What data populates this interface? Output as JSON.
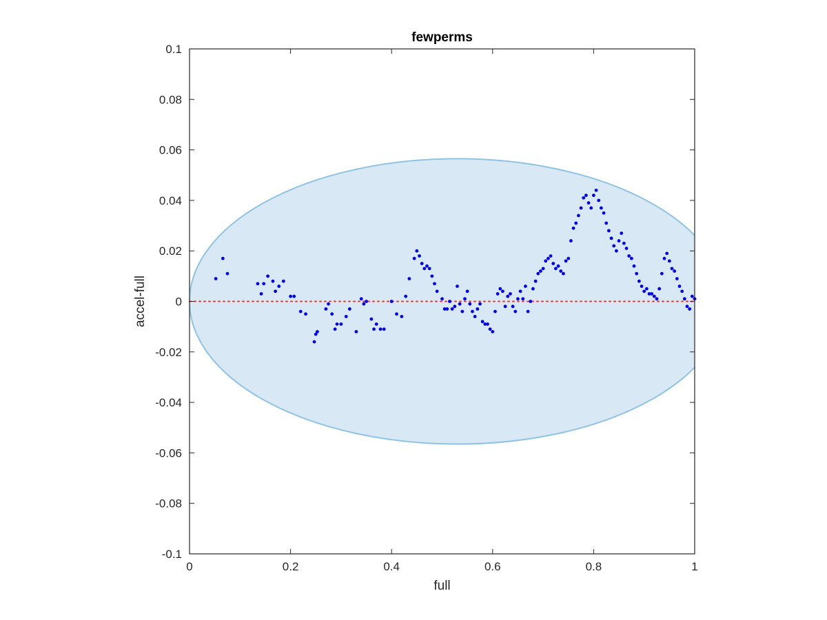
{
  "colors": {
    "ellipse_fill": "#d8e8f4",
    "ellipse_edge": "#8fc3e3",
    "points": "#0000ee",
    "zero_line": "#ff2a2a",
    "axes": "#262626"
  },
  "chart_data": {
    "type": "scatter",
    "title": "fewperms",
    "xlabel": "full",
    "ylabel": "accel-full",
    "xlim": [
      0,
      1
    ],
    "ylim": [
      -0.1,
      0.1
    ],
    "xticks": [
      0,
      0.2,
      0.4,
      0.6,
      0.8,
      1
    ],
    "xtick_labels": [
      "0",
      "0.2",
      "0.4",
      "0.6",
      "0.8",
      "1"
    ],
    "yticks": [
      -0.1,
      -0.08,
      -0.06,
      -0.04,
      -0.02,
      0,
      0.02,
      0.04,
      0.06,
      0.08,
      0.1
    ],
    "ytick_labels": [
      "-0.1",
      "-0.08",
      "-0.06",
      "-0.04",
      "-0.02",
      "0",
      "0.02",
      "0.04",
      "0.06",
      "0.08",
      "0.1"
    ],
    "grid": false,
    "reference_line": {
      "y": 0,
      "style": "dotted"
    },
    "region": {
      "shape": "ellipse",
      "center": [
        0.53,
        0.0
      ],
      "rx": 0.53,
      "ry": 0.0565
    },
    "series": [
      {
        "marker": "dot",
        "x": [
          0.052,
          0.066,
          0.075,
          0.135,
          0.142,
          0.147,
          0.155,
          0.165,
          0.17,
          0.177,
          0.186,
          0.2,
          0.207,
          0.22,
          0.23,
          0.247,
          0.25,
          0.253,
          0.27,
          0.275,
          0.282,
          0.288,
          0.292,
          0.3,
          0.31,
          0.317,
          0.33,
          0.34,
          0.345,
          0.35,
          0.36,
          0.365,
          0.37,
          0.378,
          0.385,
          0.4,
          0.41,
          0.42,
          0.428,
          0.435,
          0.445,
          0.45,
          0.455,
          0.46,
          0.465,
          0.47,
          0.475,
          0.48,
          0.485,
          0.49,
          0.5,
          0.505,
          0.51,
          0.515,
          0.52,
          0.525,
          0.53,
          0.535,
          0.54,
          0.545,
          0.55,
          0.555,
          0.56,
          0.565,
          0.57,
          0.575,
          0.58,
          0.585,
          0.59,
          0.595,
          0.6,
          0.605,
          0.61,
          0.615,
          0.62,
          0.625,
          0.63,
          0.635,
          0.64,
          0.645,
          0.65,
          0.655,
          0.66,
          0.665,
          0.67,
          0.675,
          0.68,
          0.685,
          0.69,
          0.695,
          0.7,
          0.705,
          0.71,
          0.715,
          0.72,
          0.725,
          0.73,
          0.735,
          0.74,
          0.745,
          0.75,
          0.755,
          0.76,
          0.765,
          0.77,
          0.775,
          0.78,
          0.785,
          0.79,
          0.795,
          0.8,
          0.805,
          0.81,
          0.815,
          0.82,
          0.825,
          0.83,
          0.835,
          0.84,
          0.845,
          0.85,
          0.855,
          0.86,
          0.865,
          0.87,
          0.875,
          0.88,
          0.885,
          0.89,
          0.895,
          0.9,
          0.905,
          0.91,
          0.915,
          0.92,
          0.925,
          0.93,
          0.935,
          0.94,
          0.945,
          0.95,
          0.955,
          0.96,
          0.965,
          0.97,
          0.975,
          0.98,
          0.985,
          0.99,
          0.995,
          1.0
        ],
        "y": [
          0.009,
          0.017,
          0.011,
          0.007,
          0.003,
          0.007,
          0.01,
          0.008,
          0.004,
          0.006,
          0.008,
          0.002,
          0.002,
          -0.004,
          -0.005,
          -0.016,
          -0.013,
          -0.012,
          -0.003,
          -0.001,
          -0.005,
          -0.011,
          -0.009,
          -0.009,
          -0.006,
          -0.003,
          -0.012,
          0.001,
          -0.001,
          0.0,
          -0.007,
          -0.011,
          -0.009,
          -0.011,
          -0.011,
          0.0,
          -0.005,
          -0.006,
          0.002,
          0.009,
          0.017,
          0.02,
          0.018,
          0.015,
          0.013,
          0.014,
          0.013,
          0.01,
          0.007,
          0.004,
          0.001,
          -0.003,
          -0.003,
          0.0,
          -0.003,
          -0.002,
          0.006,
          -0.001,
          -0.004,
          0.001,
          0.004,
          -0.001,
          -0.004,
          -0.006,
          -0.003,
          -0.001,
          -0.008,
          -0.009,
          -0.009,
          -0.011,
          -0.012,
          -0.004,
          0.003,
          0.005,
          0.004,
          -0.002,
          0.002,
          0.003,
          -0.002,
          -0.004,
          0.001,
          0.004,
          0.001,
          0.006,
          -0.004,
          0.0,
          0.005,
          0.008,
          0.011,
          0.012,
          0.013,
          0.016,
          0.017,
          0.018,
          0.015,
          0.013,
          0.014,
          0.012,
          0.011,
          0.016,
          0.017,
          0.024,
          0.029,
          0.031,
          0.034,
          0.037,
          0.041,
          0.042,
          0.039,
          0.037,
          0.042,
          0.044,
          0.04,
          0.037,
          0.035,
          0.031,
          0.028,
          0.025,
          0.022,
          0.02,
          0.024,
          0.027,
          0.023,
          0.021,
          0.018,
          0.017,
          0.014,
          0.011,
          0.008,
          0.006,
          0.004,
          0.005,
          0.003,
          0.003,
          0.002,
          0.001,
          0.005,
          0.011,
          0.017,
          0.019,
          0.016,
          0.013,
          0.012,
          0.009,
          0.006,
          0.004,
          0.001,
          -0.002,
          -0.003,
          0.002,
          0.001
        ]
      }
    ]
  }
}
